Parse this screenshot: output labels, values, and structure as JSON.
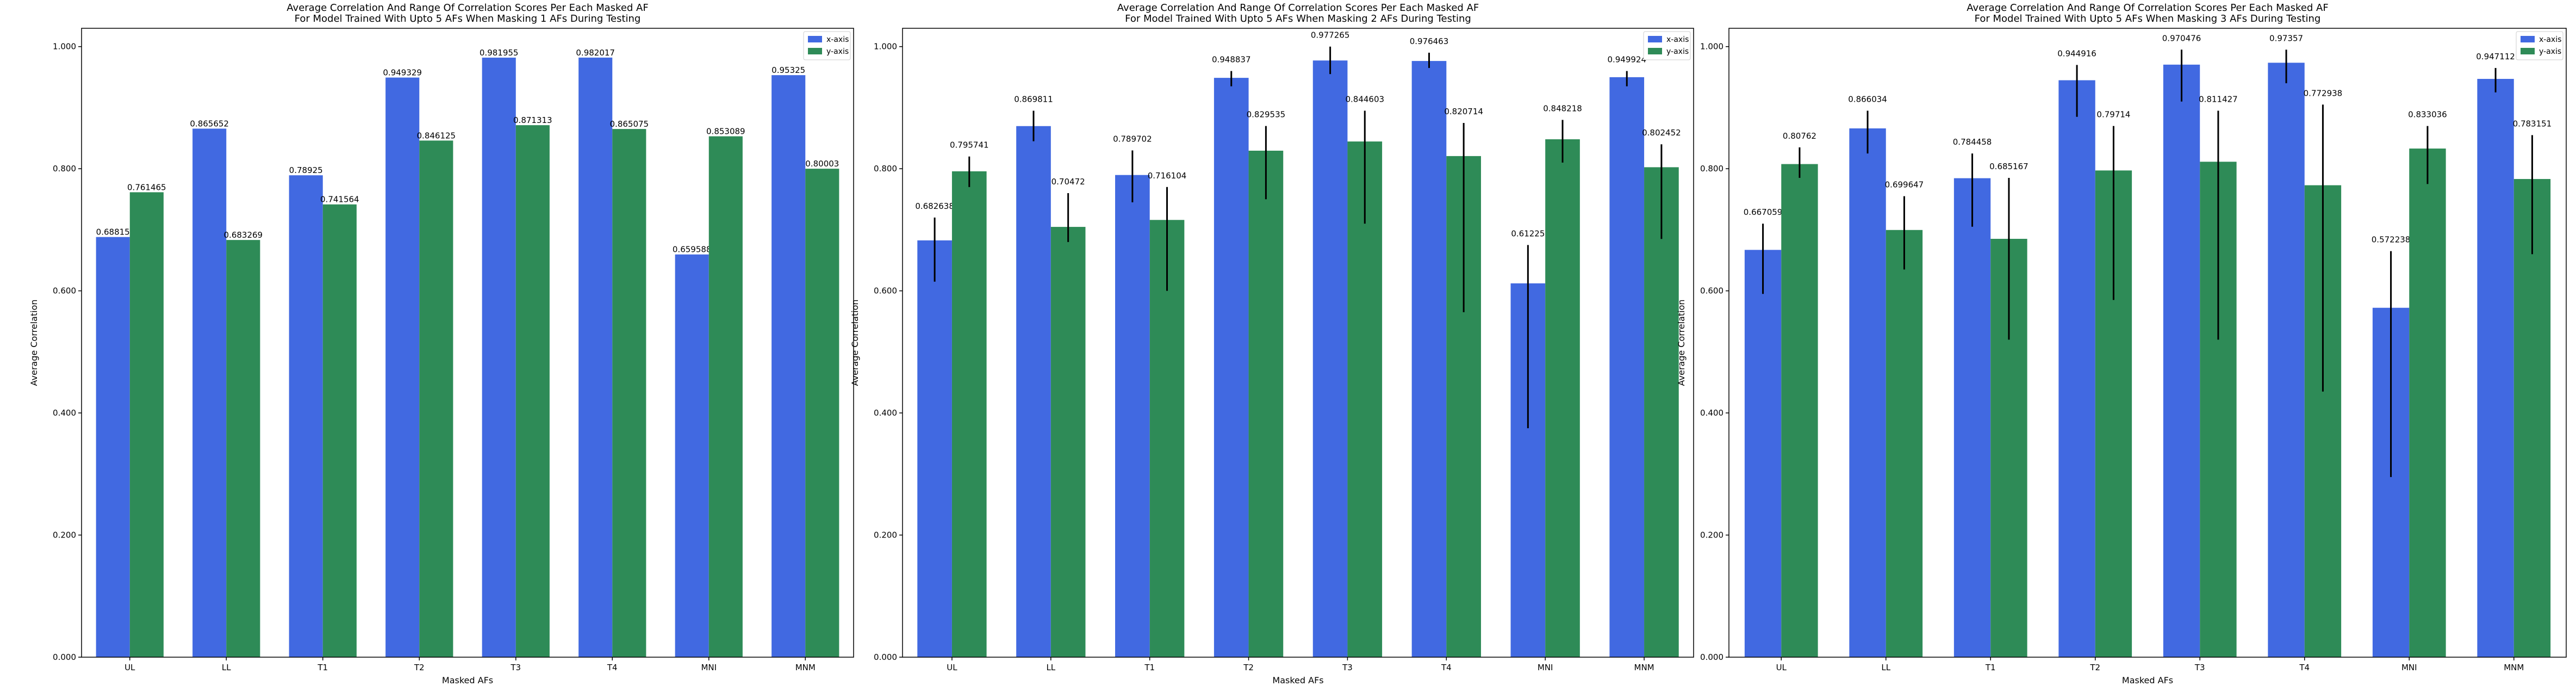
{
  "colors": {
    "x_axis": "#4169e1",
    "y_axis": "#2e8b57",
    "error_bar": "#000000"
  },
  "chart_data": [
    {
      "type": "bar",
      "title": [
        "Average Correlation And Range Of Correlation Scores Per Each Masked AF",
        "For Model Trained With Upto 5 AFs When Masking 1 AFs During Testing"
      ],
      "xlabel": "Masked AFs",
      "ylabel": "Average Correlation",
      "ylim": [
        0,
        1.03
      ],
      "yticks": [
        "0.000",
        "0.200",
        "0.400",
        "0.600",
        "0.800",
        "1.000"
      ],
      "categories": [
        "UL",
        "LL",
        "T1",
        "T2",
        "T3",
        "T4",
        "MNI",
        "MNM"
      ],
      "legend": {
        "position": "top-right",
        "entries": [
          "x-axis",
          "y-axis"
        ]
      },
      "series": [
        {
          "name": "x-axis",
          "color": "#4169e1",
          "values": [
            0.68815,
            0.865652,
            0.78925,
            0.949329,
            0.981955,
            0.982017,
            0.659588,
            0.95325
          ],
          "labels": [
            "0.68815",
            "0.865652",
            "0.78925",
            "0.949329",
            "0.981955",
            "0.982017",
            "0.659588",
            "0.95325"
          ]
        },
        {
          "name": "y-axis",
          "color": "#2e8b57",
          "values": [
            0.761465,
            0.683269,
            0.741564,
            0.846125,
            0.871313,
            0.865075,
            0.853089,
            0.80003
          ],
          "labels": [
            "0.761465",
            "0.683269",
            "0.741564",
            "0.846125",
            "0.871313",
            "0.865075",
            "0.853089",
            "0.80003"
          ]
        }
      ]
    },
    {
      "type": "bar",
      "title": [
        "Average Correlation And Range Of Correlation Scores Per Each Masked AF",
        "For Model Trained With Upto 5 AFs When Masking 2 AFs During Testing"
      ],
      "xlabel": "Masked AFs",
      "ylabel": "Average Correlation",
      "ylim": [
        0,
        1.03
      ],
      "yticks": [
        "0.000",
        "0.200",
        "0.400",
        "0.600",
        "0.800",
        "1.000"
      ],
      "categories": [
        "UL",
        "LL",
        "T1",
        "T2",
        "T3",
        "T4",
        "MNI",
        "MNM"
      ],
      "legend": {
        "position": "top-right",
        "entries": [
          "x-axis",
          "y-axis"
        ]
      },
      "series": [
        {
          "name": "x-axis",
          "color": "#4169e1",
          "values": [
            0.682638,
            0.869811,
            0.789702,
            0.948837,
            0.977265,
            0.976463,
            0.61225,
            0.949924
          ],
          "labels": [
            "0.682638",
            "0.869811",
            "0.789702",
            "0.948837",
            "0.977265",
            "0.976463",
            "0.61225",
            "0.949924"
          ],
          "err_low": [
            0.615,
            0.845,
            0.745,
            0.935,
            0.955,
            0.965,
            0.375,
            0.935
          ],
          "err_high": [
            0.72,
            0.895,
            0.83,
            0.96,
            1.0,
            0.99,
            0.675,
            0.96
          ]
        },
        {
          "name": "y-axis",
          "color": "#2e8b57",
          "values": [
            0.795741,
            0.70472,
            0.716104,
            0.829535,
            0.844603,
            0.820714,
            0.848218,
            0.802452
          ],
          "labels": [
            "0.795741",
            "0.70472",
            "0.716104",
            "0.829535",
            "0.844603",
            "0.820714",
            "0.848218",
            "0.802452"
          ],
          "err_low": [
            0.77,
            0.68,
            0.6,
            0.75,
            0.71,
            0.565,
            0.81,
            0.685
          ],
          "err_high": [
            0.82,
            0.76,
            0.77,
            0.87,
            0.895,
            0.875,
            0.88,
            0.84
          ]
        }
      ]
    },
    {
      "type": "bar",
      "title": [
        "Average Correlation And Range Of Correlation Scores Per Each Masked AF",
        "For Model Trained With Upto 5 AFs When Masking 3 AFs During Testing"
      ],
      "xlabel": "Masked AFs",
      "ylabel": "Average Correlation",
      "ylim": [
        0,
        1.03
      ],
      "yticks": [
        "0.000",
        "0.200",
        "0.400",
        "0.600",
        "0.800",
        "1.000"
      ],
      "categories": [
        "UL",
        "LL",
        "T1",
        "T2",
        "T3",
        "T4",
        "MNI",
        "MNM"
      ],
      "legend": {
        "position": "top-right",
        "entries": [
          "x-axis",
          "y-axis"
        ]
      },
      "series": [
        {
          "name": "x-axis",
          "color": "#4169e1",
          "values": [
            0.667059,
            0.866034,
            0.784458,
            0.944916,
            0.970476,
            0.97357,
            0.572238,
            0.947112
          ],
          "labels": [
            "0.667059",
            "0.866034",
            "0.784458",
            "0.944916",
            "0.970476",
            "0.97357",
            "0.572238",
            "0.947112"
          ],
          "err_low": [
            0.595,
            0.825,
            0.705,
            0.885,
            0.91,
            0.94,
            0.295,
            0.925
          ],
          "err_high": [
            0.71,
            0.895,
            0.825,
            0.97,
            0.995,
            0.995,
            0.665,
            0.965
          ]
        },
        {
          "name": "y-axis",
          "color": "#2e8b57",
          "values": [
            0.80762,
            0.699647,
            0.685167,
            0.79714,
            0.811427,
            0.772938,
            0.833036,
            0.783151
          ],
          "labels": [
            "0.80762",
            "0.699647",
            "0.685167",
            "0.79714",
            "0.811427",
            "0.772938",
            "0.833036",
            "0.783151"
          ],
          "err_low": [
            0.785,
            0.635,
            0.52,
            0.585,
            0.52,
            0.435,
            0.775,
            0.66
          ],
          "err_high": [
            0.835,
            0.755,
            0.785,
            0.87,
            0.895,
            0.905,
            0.87,
            0.855
          ]
        }
      ]
    }
  ]
}
